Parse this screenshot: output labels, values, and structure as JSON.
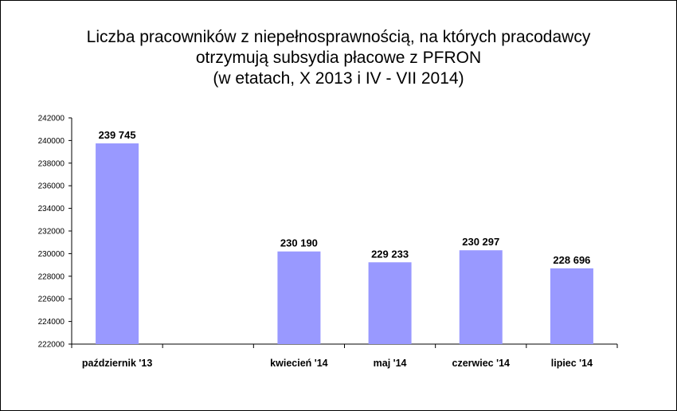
{
  "chart_data": {
    "type": "bar",
    "title_lines": [
      "Liczba pracowników z niepełnosprawnością, na których pracodawcy",
      "otrzymują subsydia płacowe z PFRON",
      "(w etatach, X 2013 i IV - VII 2014)"
    ],
    "categories": [
      "październik '13",
      "",
      "kwiecień '14",
      "maj  '14",
      "czerwiec '14",
      "lipiec '14"
    ],
    "values": [
      239745,
      null,
      230190,
      229233,
      230297,
      228696
    ],
    "data_labels": [
      "239 745",
      "",
      "230 190",
      "229 233",
      "230 297",
      "228 696"
    ],
    "ylim": [
      222000,
      242000
    ],
    "y_ticks": [
      222000,
      224000,
      226000,
      228000,
      230000,
      232000,
      234000,
      236000,
      238000,
      240000,
      242000
    ],
    "grid": false,
    "legend": "none",
    "xlabel": "",
    "ylabel": "",
    "colors": {
      "bar": "#9999ff",
      "axis": "#000000"
    }
  }
}
